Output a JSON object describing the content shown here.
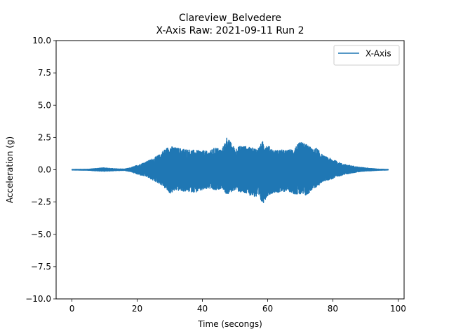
{
  "chart_data": {
    "type": "line",
    "title_line1": "Clareview_Belvedere",
    "title_line2": "X-Axis Raw: 2021-09-11 Run 2",
    "xlabel": "Time (secongs)",
    "ylabel": "Acceleration (g)",
    "xlim": [
      -4.85,
      101.85
    ],
    "ylim": [
      -10.0,
      10.0
    ],
    "xticks": [
      0,
      20,
      40,
      60,
      80,
      100
    ],
    "xtick_labels": [
      "0",
      "20",
      "40",
      "60",
      "80",
      "100"
    ],
    "yticks": [
      -10.0,
      -7.5,
      -5.0,
      -2.5,
      0.0,
      2.5,
      5.0,
      7.5,
      10.0
    ],
    "ytick_labels": [
      "−10.0",
      "−7.5",
      "−5.0",
      "−2.5",
      "0.0",
      "2.5",
      "5.0",
      "7.5",
      "10.0"
    ],
    "grid": false,
    "legend_position": "top-right",
    "series": [
      {
        "name": "X-Axis",
        "color": "#1f77b4",
        "duration": 97.0,
        "envelope_x": [
          0,
          5,
          8,
          10,
          13,
          16,
          18,
          20,
          23,
          25,
          27,
          28,
          30,
          32,
          35,
          38,
          40,
          42,
          44,
          46,
          47.5,
          50,
          52,
          55,
          57,
          58.5,
          60,
          62,
          64,
          66,
          68,
          70,
          72,
          74,
          75,
          77,
          80,
          83,
          86,
          88,
          90,
          92,
          94,
          97
        ],
        "envelope_pos": [
          0.02,
          0.04,
          0.12,
          0.15,
          0.08,
          0.05,
          0.15,
          0.35,
          0.65,
          0.9,
          1.2,
          1.5,
          1.85,
          1.7,
          1.6,
          1.5,
          1.5,
          1.4,
          1.75,
          1.55,
          2.55,
          1.65,
          1.9,
          1.7,
          1.65,
          2.2,
          1.9,
          1.5,
          1.55,
          1.5,
          1.65,
          2.15,
          2.0,
          1.55,
          1.7,
          1.1,
          0.8,
          0.45,
          0.3,
          0.2,
          0.15,
          0.1,
          0.05,
          0.02
        ],
        "envelope_neg": [
          -0.02,
          -0.04,
          -0.1,
          -0.12,
          -0.08,
          -0.05,
          -0.15,
          -0.35,
          -0.55,
          -0.85,
          -1.1,
          -1.3,
          -1.85,
          -1.6,
          -1.7,
          -1.75,
          -1.6,
          -1.45,
          -1.65,
          -1.4,
          -1.95,
          -1.55,
          -1.8,
          -2.0,
          -2.2,
          -2.65,
          -2.0,
          -1.75,
          -1.8,
          -1.6,
          -1.85,
          -1.95,
          -2.05,
          -1.4,
          -1.4,
          -0.9,
          -0.7,
          -0.4,
          -0.25,
          -0.15,
          -0.1,
          -0.08,
          -0.04,
          -0.02
        ]
      }
    ]
  }
}
